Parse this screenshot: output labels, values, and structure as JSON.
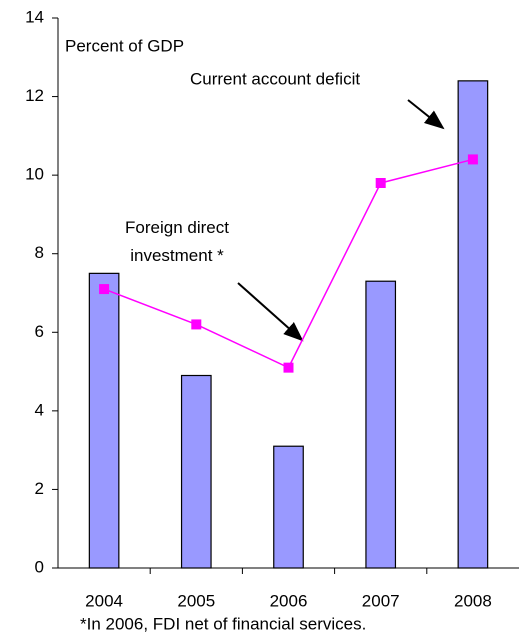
{
  "chart_data": {
    "type": "bar",
    "y_label": "Percent of GDP",
    "categories": [
      "2004",
      "2005",
      "2006",
      "2007",
      "2008"
    ],
    "series": [
      {
        "name": "Current account deficit",
        "type": "bar",
        "color": "#9999ff",
        "values": [
          7.5,
          4.9,
          3.1,
          7.3,
          12.4
        ]
      },
      {
        "name": "Foreign direct investment *",
        "type": "line",
        "color": "#ff00ff",
        "values": [
          7.1,
          6.2,
          5.1,
          9.8,
          10.4
        ]
      }
    ],
    "ylim": [
      0,
      14
    ],
    "yticks": [
      0,
      2,
      4,
      6,
      8,
      10,
      12,
      14
    ],
    "grid": false,
    "footnote": "*In 2006, FDI net of financial services."
  }
}
